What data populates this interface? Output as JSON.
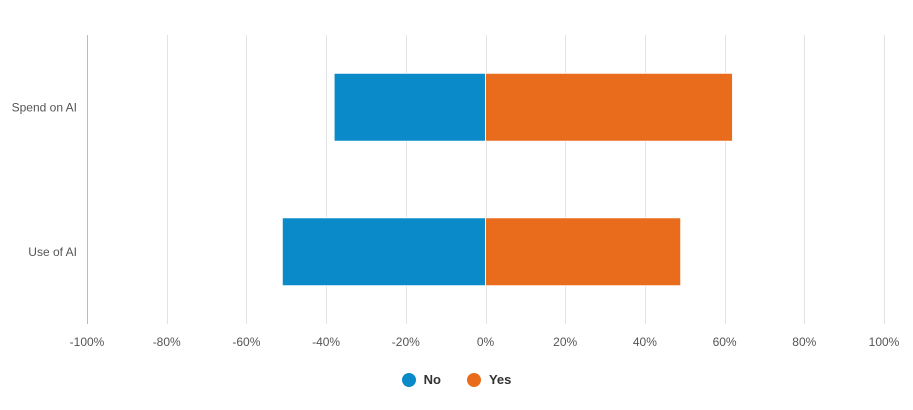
{
  "chart_data": {
    "type": "bar",
    "orientation": "horizontal",
    "stacked": "diverging",
    "categories": [
      "Spend on AI",
      "Use of AI"
    ],
    "series": [
      {
        "name": "No",
        "values": [
          -38,
          -51
        ],
        "color": "#0a8ac8"
      },
      {
        "name": "Yes",
        "values": [
          62,
          49
        ],
        "color": "#e96b1c"
      }
    ],
    "xlim": [
      -100,
      100
    ],
    "xticks": [
      -100,
      -80,
      -60,
      -40,
      -20,
      0,
      20,
      40,
      60,
      80,
      100
    ],
    "tick_labels": [
      "-100%",
      "-80%",
      "-60%",
      "-40%",
      "-20%",
      "0%",
      "20%",
      "40%",
      "60%",
      "80%",
      "100%"
    ],
    "grid": true,
    "legend_position": "bottom-center"
  }
}
